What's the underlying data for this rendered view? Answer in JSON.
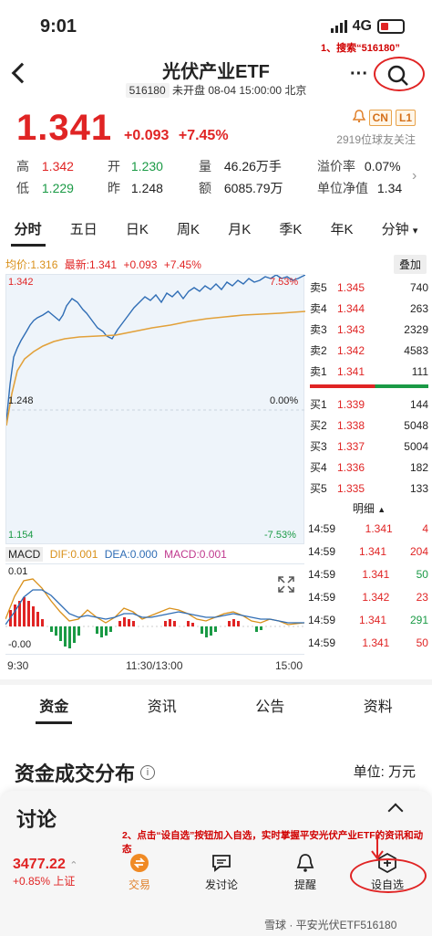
{
  "status": {
    "time": "9:01",
    "network": "4G"
  },
  "annotations": {
    "top": "1、搜索“516180”",
    "bottom": "2、点击“设自选”按钮加入自选，实时掌握平安光伏产业ETF的资讯和动态"
  },
  "header": {
    "title": "光伏产业ETF",
    "code": "516180",
    "status_text": "未开盘 08-04 15:00:00 北京",
    "more": "···"
  },
  "quote": {
    "price": "1.341",
    "change": "+0.093",
    "change_pct": "+7.45%",
    "badges": [
      "CN",
      "L1"
    ],
    "followers": "2919位球友关注",
    "high_label": "高",
    "high": "1.342",
    "open_label": "开",
    "open": "1.230",
    "volume_label": "量",
    "volume": "46.26万手",
    "premium_label": "溢价率",
    "premium": "0.07%",
    "low_label": "低",
    "low": "1.229",
    "prev_label": "昨",
    "prev": "1.248",
    "amount_label": "额",
    "amount": "6085.79万",
    "nav_label": "单位净值",
    "nav": "1.34"
  },
  "tabs": [
    "分时",
    "五日",
    "日K",
    "周K",
    "月K",
    "季K",
    "年K",
    "分钟"
  ],
  "chart_info": {
    "avg_label": "均价:1.316",
    "latest_label": "最新:1.341",
    "chg": "+0.093",
    "pct": "+7.45%",
    "stack_btn": "叠加",
    "y_top": "1.342",
    "y_mid": "1.248",
    "y_bot": "1.154",
    "pct_top": "7.53%",
    "pct_mid": "0.00%",
    "pct_bot": "-7.53%"
  },
  "orderbook": {
    "asks": [
      {
        "label": "卖5",
        "price": "1.345",
        "vol": "740"
      },
      {
        "label": "卖4",
        "price": "1.344",
        "vol": "263"
      },
      {
        "label": "卖3",
        "price": "1.343",
        "vol": "2329"
      },
      {
        "label": "卖2",
        "price": "1.342",
        "vol": "4583"
      },
      {
        "label": "卖1",
        "price": "1.341",
        "vol": "111"
      }
    ],
    "bids": [
      {
        "label": "买1",
        "price": "1.339",
        "vol": "144"
      },
      {
        "label": "买2",
        "price": "1.338",
        "vol": "5048"
      },
      {
        "label": "买3",
        "price": "1.337",
        "vol": "5004"
      },
      {
        "label": "买4",
        "price": "1.336",
        "vol": "182"
      },
      {
        "label": "买5",
        "price": "1.335",
        "vol": "133"
      }
    ],
    "detail_label": "明细"
  },
  "trades": [
    {
      "time": "14:59",
      "price": "1.341",
      "vol": "4",
      "color": "red"
    },
    {
      "time": "14:59",
      "price": "1.341",
      "vol": "204",
      "color": "red"
    },
    {
      "time": "14:59",
      "price": "1.341",
      "vol": "50",
      "color": "green"
    },
    {
      "time": "14:59",
      "price": "1.342",
      "vol": "23",
      "color": "red"
    },
    {
      "time": "14:59",
      "price": "1.341",
      "vol": "291",
      "color": "green"
    },
    {
      "time": "14:59",
      "price": "1.341",
      "vol": "50",
      "color": "red"
    }
  ],
  "macd": {
    "label": "MACD",
    "dif": "DIF:0.001",
    "dea": "DEA:0.000",
    "macd": "MACD:0.001",
    "y_top": "0.01",
    "y_bot": "-0.00"
  },
  "time_axis": [
    "9:30",
    "11:30/13:00",
    "15:00"
  ],
  "section_tabs": [
    "资金",
    "资讯",
    "公告",
    "资料"
  ],
  "fund_section": {
    "title": "资金成交分布",
    "unit": "单位: 万元"
  },
  "bottom_panel": {
    "title": "讨论",
    "index_value": "3477.22",
    "index_change": "+0.85% 上证",
    "nav": [
      "交易",
      "发讨论",
      "提醒",
      "设自选"
    ]
  },
  "footer": {
    "watermark": "雪球 · 平安光伏ETF516180"
  },
  "colors": {
    "up": "#e02424",
    "down": "#1a9a45",
    "price_line": "#2f6db5",
    "avg_line": "#e2a13a"
  }
}
